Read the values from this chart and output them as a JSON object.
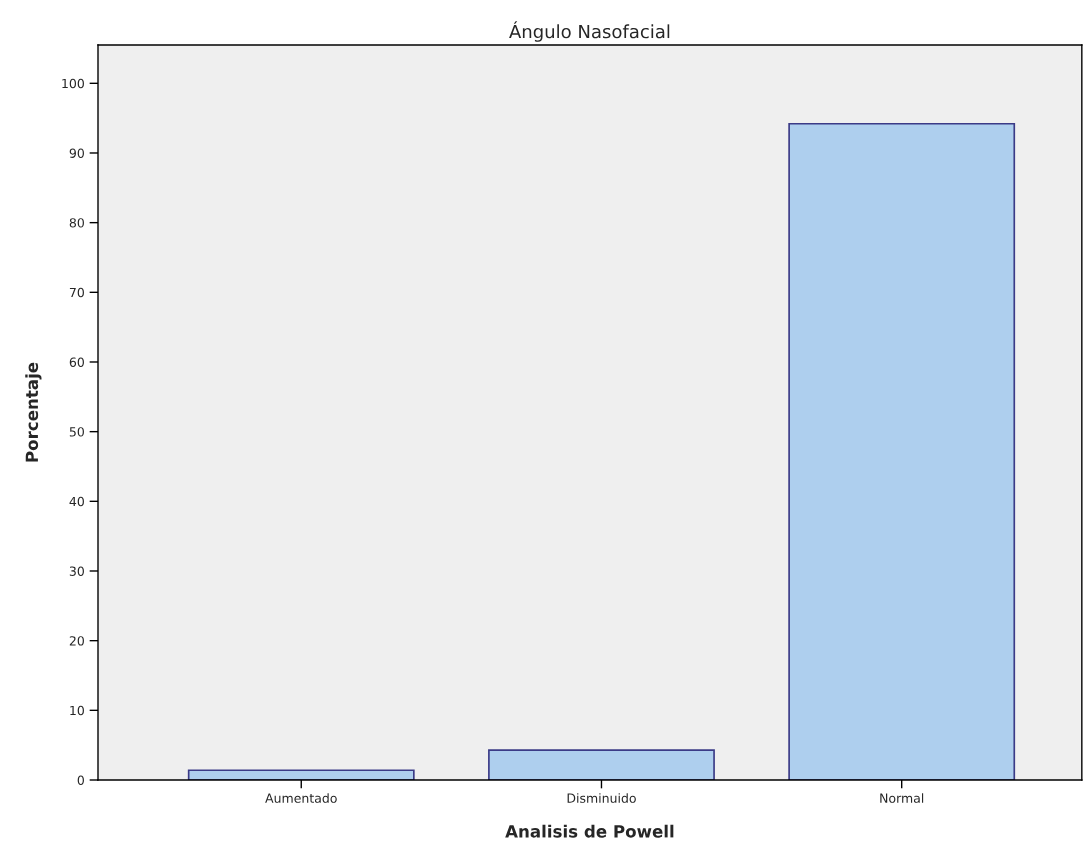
{
  "chart_data": {
    "type": "bar",
    "title": "Ángulo Nasofacial",
    "xlabel": "Analisis de Powell",
    "ylabel": "Porcentaje",
    "categories": [
      "Aumentado",
      "Disminuido",
      "Normal"
    ],
    "values": [
      1.4,
      4.3,
      94.2
    ],
    "color": "#aecfee",
    "ylim": [
      0,
      105.5
    ],
    "yticks": [
      0,
      10,
      20,
      30,
      40,
      50,
      60,
      70,
      80,
      90,
      100
    ],
    "grid": false
  }
}
